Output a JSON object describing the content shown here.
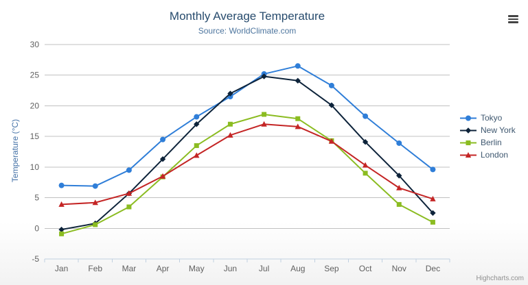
{
  "header": {
    "title": "Monthly Average Temperature",
    "subtitle": "Source: WorldClimate.com"
  },
  "chart_data": {
    "type": "line",
    "categories": [
      "Jan",
      "Feb",
      "Mar",
      "Apr",
      "May",
      "Jun",
      "Jul",
      "Aug",
      "Sep",
      "Oct",
      "Nov",
      "Dec"
    ],
    "series": [
      {
        "name": "Tokyo",
        "color": "#2f7ed8",
        "marker": "circle",
        "values": [
          7.0,
          6.9,
          9.5,
          14.5,
          18.2,
          21.5,
          25.2,
          26.5,
          23.3,
          18.3,
          13.9,
          9.6
        ]
      },
      {
        "name": "New York",
        "color": "#0d233a",
        "marker": "diamond",
        "values": [
          -0.2,
          0.8,
          5.7,
          11.3,
          17.0,
          22.0,
          24.8,
          24.1,
          20.1,
          14.1,
          8.6,
          2.5
        ]
      },
      {
        "name": "Berlin",
        "color": "#8bbc21",
        "marker": "square",
        "values": [
          -0.9,
          0.6,
          3.5,
          8.4,
          13.5,
          17.0,
          18.6,
          17.9,
          14.3,
          9.0,
          3.9,
          1.0
        ]
      },
      {
        "name": "London",
        "color": "#c42525",
        "marker": "triangle",
        "values": [
          3.9,
          4.2,
          5.7,
          8.5,
          11.9,
          15.2,
          17.0,
          16.6,
          14.2,
          10.3,
          6.6,
          4.8
        ]
      }
    ],
    "title": "Monthly Average Temperature",
    "xlabel": "",
    "ylabel": "Temperature (°C)",
    "ylim": [
      -5,
      30
    ],
    "ytick_step": 5,
    "grid": "horizontal",
    "legend_position": "right"
  },
  "colors": {
    "grid_line": "#C0C0C0",
    "axis_line": "#C0D0E0",
    "axis_label": "#606060",
    "title": "#274b6d",
    "subtitle": "#4d759e"
  },
  "credits": {
    "text": "Highcharts.com"
  }
}
